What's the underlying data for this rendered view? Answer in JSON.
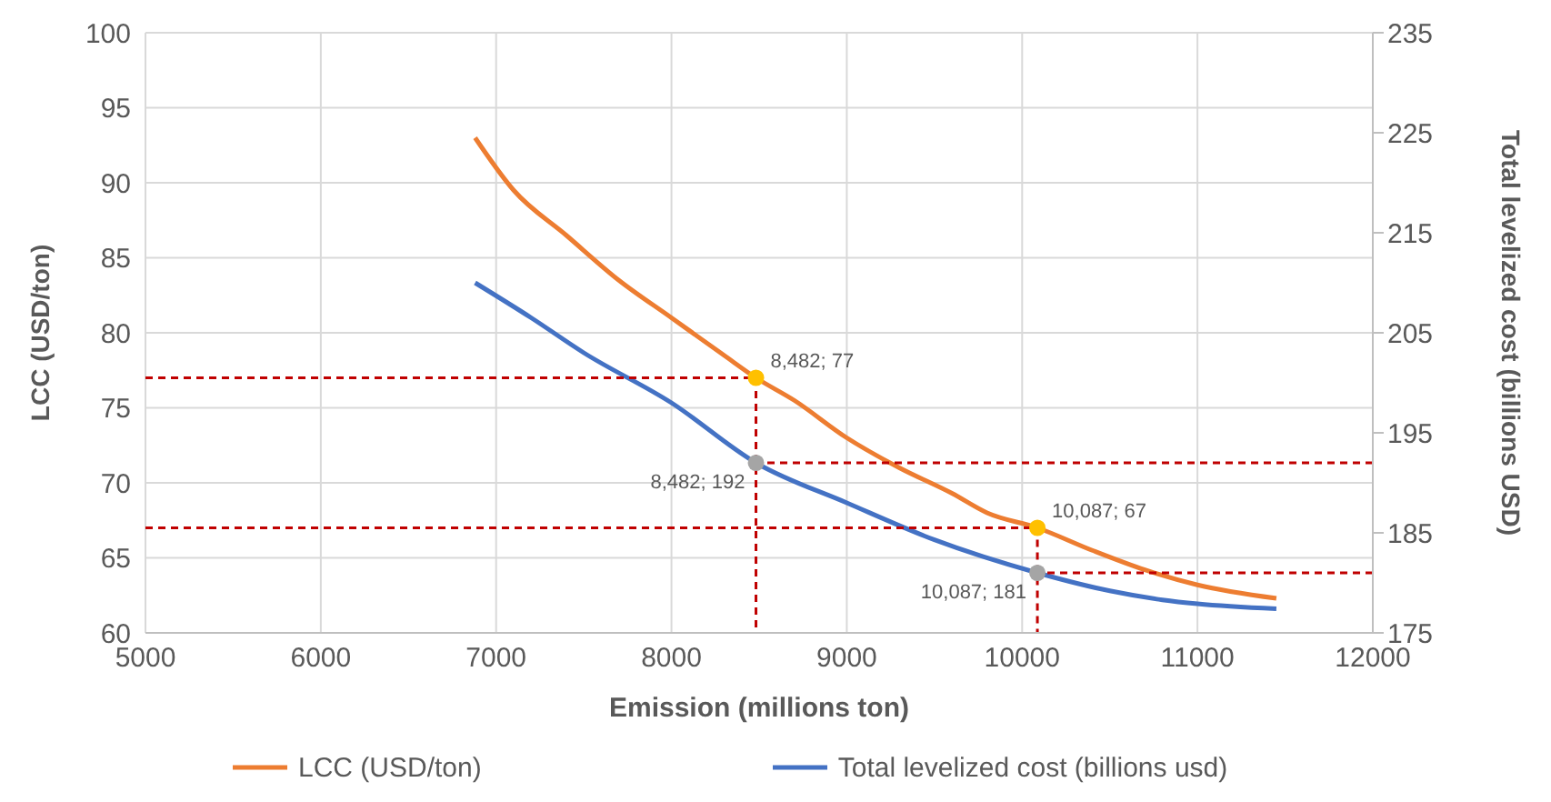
{
  "chart_data": {
    "type": "line",
    "xlabel": "Emission (millions ton)",
    "ylabel": "LCC (USD/ton)",
    "y2label": "Total levelized cost (billions USD)",
    "xlim": [
      5000,
      12000
    ],
    "xticks": [
      5000,
      6000,
      7000,
      8000,
      9000,
      10000,
      11000,
      12000
    ],
    "ylim": [
      60,
      100
    ],
    "yticks": [
      60,
      65,
      70,
      75,
      80,
      85,
      90,
      95,
      100
    ],
    "y2lim": [
      175,
      235
    ],
    "y2ticks": [
      175,
      185,
      195,
      205,
      215,
      225,
      235
    ],
    "grid": true,
    "legend": "bottom",
    "marker": "none",
    "series": [
      {
        "name": "LCC (USD/ton)",
        "color": "#ed7d31",
        "x": [
          6880,
          7100,
          7400,
          7700,
          8000,
          8300,
          8482,
          8700,
          9000,
          9300,
          9600,
          9800,
          10087,
          10400,
          10700,
          11000,
          11450
        ],
        "values": [
          93,
          89.5,
          86.5,
          83.5,
          81,
          78.5,
          77,
          75.5,
          73,
          71,
          69.3,
          68,
          67,
          65.5,
          64.2,
          63.2,
          62.3
        ]
      },
      {
        "name": "Total levelized cost (billions usd)",
        "color": "#4472c4",
        "axis": "y2",
        "x": [
          6880,
          7200,
          7500,
          8000,
          8482,
          9000,
          9500,
          10087,
          10500,
          10800,
          11000,
          11450
        ],
        "values": [
          210,
          206.5,
          203,
          198,
          192,
          188,
          184.3,
          181,
          179.2,
          178.3,
          177.9,
          177.4
        ]
      },
      {
        "color": "#c00000",
        "line_style": "dashed",
        "x": [
          5000,
          8482,
          8482
        ],
        "values": [
          77,
          77,
          60
        ]
      },
      {
        "color": "#c00000",
        "line_style": "dashed",
        "x": [
          5000,
          10087,
          10087
        ],
        "values": [
          67,
          67,
          60
        ]
      },
      {
        "color": "#c00000",
        "line_style": "dashed",
        "axis": "y2",
        "x": [
          12000,
          8482
        ],
        "values": [
          192,
          192
        ]
      },
      {
        "color": "#c00000",
        "line_style": "dashed",
        "axis": "y2",
        "x": [
          12000,
          10087
        ],
        "values": [
          181,
          181
        ]
      },
      {
        "type": "scatter",
        "marker": "circle",
        "color": "#ffc000",
        "x": [
          8482,
          10087
        ],
        "values": [
          77,
          67
        ],
        "value_labels": [
          "8,482; 77",
          "10,087; 67"
        ]
      },
      {
        "type": "scatter",
        "marker": "circle",
        "color": "#a5a5a5",
        "axis": "y2",
        "x": [
          8482,
          10087
        ],
        "values": [
          192,
          181
        ],
        "value_labels": [
          "8,482; 192",
          "10,087; 181"
        ]
      }
    ]
  }
}
